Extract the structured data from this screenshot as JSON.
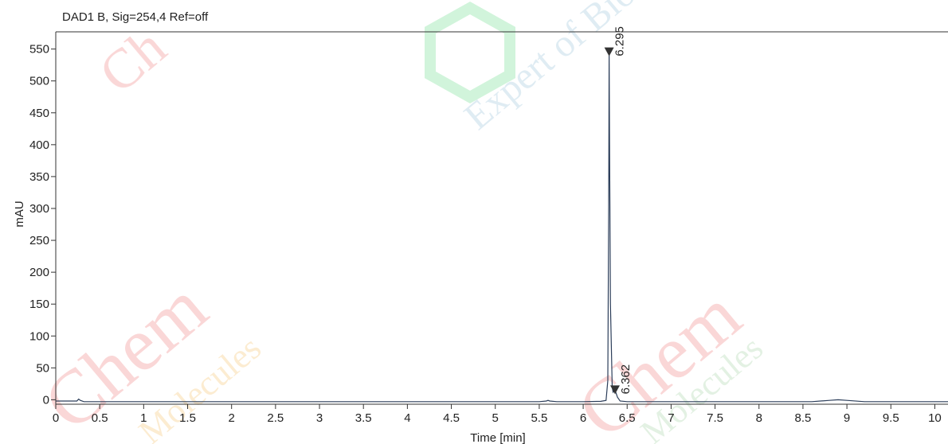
{
  "chart_data": {
    "type": "line",
    "title": "DAD1 B, Sig=254,4 Ref=off",
    "xlabel": "Time [min]",
    "ylabel": "mAU",
    "xlim": [
      0,
      10.15
    ],
    "ylim": [
      -7,
      577
    ],
    "x_ticks": [
      0,
      0.5,
      1,
      1.5,
      2,
      2.5,
      3,
      3.5,
      4,
      4.5,
      5,
      5.5,
      6,
      6.5,
      7,
      7.5,
      8,
      8.5,
      9,
      9.5,
      10
    ],
    "x_tick_labels": [
      "0",
      "0.5",
      "1",
      "1.5",
      "2",
      "2.5",
      "3",
      "3.5",
      "4",
      "4.5",
      "5",
      "5.5",
      "6",
      "6.5",
      "7",
      "7.5",
      "8",
      "8.5",
      "9",
      "9.5",
      "10"
    ],
    "y_ticks": [
      0,
      50,
      100,
      150,
      200,
      250,
      300,
      350,
      400,
      450,
      500,
      550
    ],
    "y_tick_labels": [
      "0",
      "50",
      "100",
      "150",
      "200",
      "250",
      "300",
      "350",
      "400",
      "450",
      "500",
      "550"
    ],
    "grid": false,
    "series": [
      {
        "color": "#2c3e5a",
        "x": [
          0,
          0.2,
          0.24,
          0.26,
          0.28,
          0.32,
          0.5,
          1,
          2,
          3,
          4,
          5,
          5.5,
          5.58,
          5.6,
          5.62,
          5.7,
          6,
          6.2,
          6.26,
          6.28,
          6.29,
          6.295,
          6.3,
          6.31,
          6.33,
          6.34,
          6.35,
          6.362,
          6.375,
          6.39,
          6.42,
          6.5,
          7,
          8,
          8.6,
          8.8,
          8.9,
          9,
          9.2,
          10.15
        ],
        "y": [
          -2,
          -2,
          -2,
          1,
          -1,
          -3,
          -3,
          -3,
          -3,
          -3,
          -3,
          -3,
          -3,
          -2,
          -1,
          -2,
          -3,
          -3,
          -2.5,
          -1,
          30,
          300,
          545,
          400,
          150,
          20,
          12,
          14,
          15,
          10,
          4,
          -2,
          -3,
          -3,
          -3,
          -3,
          -1,
          0,
          -1,
          -3,
          -3
        ]
      }
    ],
    "peaks": [
      {
        "rt": 6.295,
        "label": "6.295",
        "height": 545
      },
      {
        "rt": 6.362,
        "label": "6.362",
        "height": 15
      }
    ],
    "watermark_lines": [
      "Expert of Bioactive",
      "Chem",
      "Molecules"
    ]
  }
}
